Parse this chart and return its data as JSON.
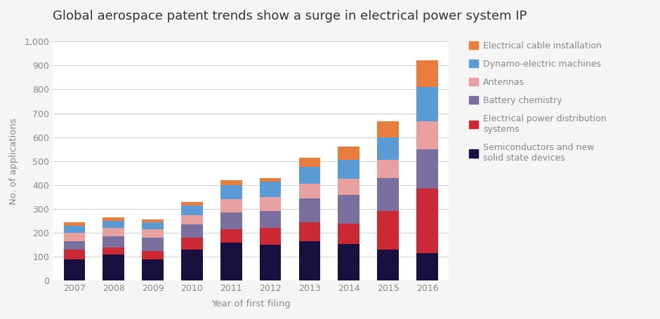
{
  "title": "Global aerospace patent trends show a surge in electrical power system IP",
  "years": [
    2007,
    2008,
    2009,
    2010,
    2011,
    2012,
    2013,
    2014,
    2015,
    2016
  ],
  "xlabel": "Year of first filing",
  "ylabel": "No. of applications",
  "ylim": [
    0,
    1000
  ],
  "yticks": [
    0,
    100,
    200,
    300,
    400,
    500,
    600,
    700,
    800,
    900,
    1000
  ],
  "segments": {
    "Semiconductors and new\nsolid state devices": {
      "color": "#1a1040",
      "values": [
        90,
        110,
        90,
        130,
        160,
        150,
        165,
        155,
        130,
        115
      ]
    },
    "Electrical power distribution\nsystems": {
      "color": "#cc2936",
      "values": [
        40,
        30,
        35,
        50,
        55,
        70,
        80,
        85,
        160,
        270
      ]
    },
    "Battery chemistry": {
      "color": "#7b6fa0",
      "values": [
        35,
        45,
        55,
        55,
        70,
        70,
        100,
        120,
        140,
        165
      ]
    },
    "Antennas": {
      "color": "#e8a0a0",
      "values": [
        35,
        35,
        35,
        40,
        55,
        60,
        60,
        65,
        75,
        115
      ]
    },
    "Dynamo-electric machines": {
      "color": "#5b9bd5",
      "values": [
        30,
        30,
        30,
        40,
        60,
        65,
        70,
        80,
        95,
        145
      ]
    },
    "Electrical cable installation": {
      "color": "#e87d3e",
      "values": [
        15,
        15,
        10,
        15,
        20,
        15,
        40,
        55,
        65,
        110
      ]
    }
  },
  "background_color": "#f5f5f5",
  "plot_bg_color": "#ffffff",
  "grid_color": "#d0d0d0",
  "title_fontsize": 13,
  "axis_label_fontsize": 9.5,
  "tick_label_fontsize": 9,
  "legend_fontsize": 9,
  "bar_width": 0.55
}
